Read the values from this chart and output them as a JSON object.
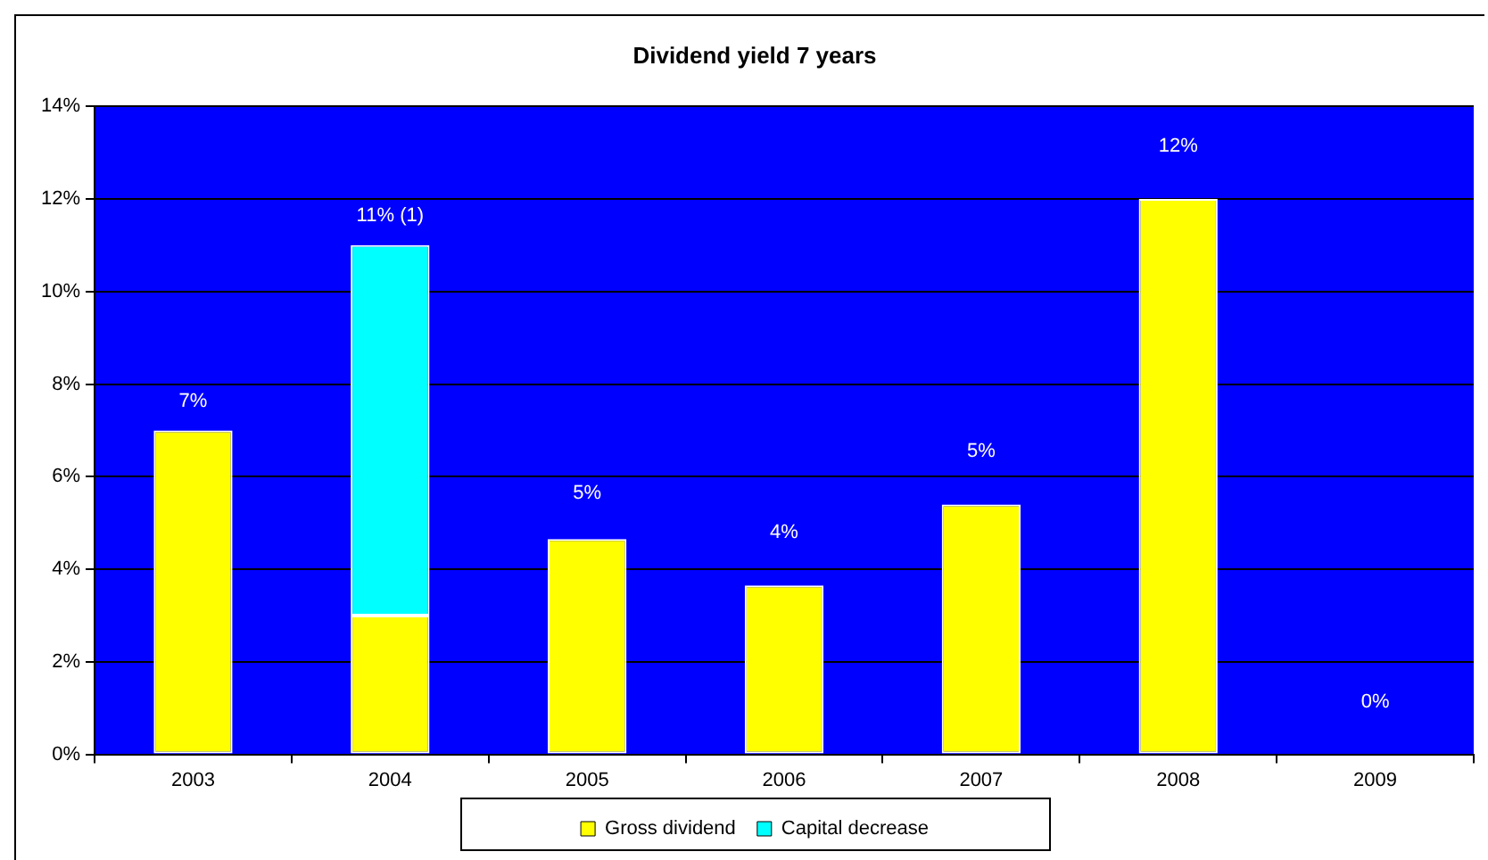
{
  "chart_data": {
    "type": "bar",
    "title": "Dividend yield 7 years",
    "categories": [
      "2003",
      "2004",
      "2005",
      "2006",
      "2007",
      "2008",
      "2009"
    ],
    "stacked": true,
    "series": [
      {
        "name": "Gross dividend",
        "color": "#ffff00",
        "values": [
          7,
          3,
          4.65,
          3.65,
          5.4,
          12,
          0
        ]
      },
      {
        "name": "Capital decrease",
        "color": "#00ffff",
        "values": [
          0,
          8,
          0,
          0,
          0,
          0,
          0
        ]
      }
    ],
    "totals": [
      "7%",
      "11% (1)",
      "5%",
      "4%",
      "5%",
      "12%",
      "0%"
    ],
    "ylim": [
      0,
      14
    ],
    "yticks": [
      {
        "value": 0,
        "label": "0%"
      },
      {
        "value": 2,
        "label": "2%"
      },
      {
        "value": 4,
        "label": "4%"
      },
      {
        "value": 6,
        "label": "6%"
      },
      {
        "value": 8,
        "label": "8%"
      },
      {
        "value": 10,
        "label": "10%"
      },
      {
        "value": 12,
        "label": "12%"
      },
      {
        "value": 14,
        "label": "14%"
      }
    ],
    "grid": "y",
    "legend": "bottom"
  }
}
